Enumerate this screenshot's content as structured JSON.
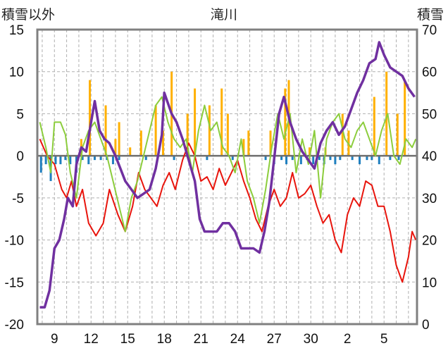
{
  "chart_data": {
    "type": "line",
    "title": "滝川",
    "ylabel_left": "積雪以外",
    "ylabel_right": "積雪",
    "x_tick_labels": [
      "9",
      "12",
      "15",
      "18",
      "21",
      "24",
      "27",
      "30",
      "2",
      "5"
    ],
    "ylim_left": [
      -20,
      15
    ],
    "ylim_right": [
      0,
      70
    ],
    "y_ticks_left": [
      "15",
      "10",
      "5",
      "0",
      "-5",
      "-10",
      "-15",
      "-20"
    ],
    "y_ticks_right": [
      "70",
      "60",
      "50",
      "40",
      "30",
      "20",
      "10",
      "0"
    ],
    "grid": true,
    "legend": "none",
    "colors": {
      "red": "#e8140c",
      "green": "#8ccd3c",
      "purple": "#7030a0",
      "orange": "#ffb000",
      "blue": "#1f7fbf",
      "frame": "#808080"
    },
    "series": [
      {
        "axis": "left",
        "color": "red",
        "points": [
          [
            7.8,
            2
          ],
          [
            8.4,
            0
          ],
          [
            9,
            -1
          ],
          [
            9.6,
            -4
          ],
          [
            10,
            -5
          ],
          [
            10.4,
            -3
          ],
          [
            10.8,
            -6
          ],
          [
            11.3,
            -4
          ],
          [
            11.8,
            -8
          ],
          [
            12.4,
            -9.5
          ],
          [
            13,
            -8
          ],
          [
            13.5,
            -4
          ],
          [
            14.2,
            -7
          ],
          [
            14.8,
            -9
          ],
          [
            15.4,
            -6
          ],
          [
            15.9,
            -2
          ],
          [
            16.4,
            -4
          ],
          [
            16.9,
            -5
          ],
          [
            17.4,
            -6
          ],
          [
            17.9,
            -3.5
          ],
          [
            18.4,
            -2
          ],
          [
            18.9,
            -4
          ],
          [
            19.5,
            -0.5
          ],
          [
            20,
            1.5
          ],
          [
            20.5,
            0
          ],
          [
            21,
            -3
          ],
          [
            21.5,
            -2.5
          ],
          [
            22,
            -4
          ],
          [
            22.5,
            -1.5
          ],
          [
            23,
            -3.5
          ],
          [
            23.5,
            -2
          ],
          [
            24,
            -0.5
          ],
          [
            24.5,
            -3
          ],
          [
            25,
            -5
          ],
          [
            25.5,
            -7.5
          ],
          [
            26,
            -9
          ],
          [
            26.5,
            -6
          ],
          [
            27,
            -4
          ],
          [
            27.5,
            -6
          ],
          [
            28,
            -5
          ],
          [
            28.5,
            -2
          ],
          [
            29,
            -5
          ],
          [
            29.5,
            -4.5
          ],
          [
            30,
            -3.5
          ],
          [
            30.5,
            -6
          ],
          [
            31,
            -8
          ],
          [
            31.5,
            -7
          ],
          [
            32,
            -10
          ],
          [
            32.5,
            -11.5
          ],
          [
            33,
            -7
          ],
          [
            33.5,
            -5
          ],
          [
            34,
            -6
          ],
          [
            34.5,
            -3
          ],
          [
            35,
            -3.5
          ],
          [
            35.5,
            -6
          ],
          [
            36,
            -6
          ],
          [
            36.5,
            -9
          ],
          [
            37,
            -13
          ],
          [
            37.5,
            -15
          ],
          [
            38,
            -12
          ],
          [
            38.3,
            -9
          ],
          [
            38.6,
            -10
          ]
        ]
      },
      {
        "axis": "left",
        "color": "green",
        "points": [
          [
            7.8,
            4
          ],
          [
            8.3,
            1
          ],
          [
            8.7,
            -2
          ],
          [
            9,
            4
          ],
          [
            9.5,
            4
          ],
          [
            9.9,
            2.5
          ],
          [
            10.3,
            -2
          ],
          [
            10.8,
            -5
          ],
          [
            11.3,
            1
          ],
          [
            11.8,
            3
          ],
          [
            12.3,
            4
          ],
          [
            12.8,
            2
          ],
          [
            13.3,
            0
          ],
          [
            13.8,
            -3
          ],
          [
            14.3,
            -6
          ],
          [
            14.8,
            -9
          ],
          [
            15.3,
            -5
          ],
          [
            15.8,
            -3
          ],
          [
            16.3,
            0
          ],
          [
            16.8,
            3
          ],
          [
            17.3,
            6
          ],
          [
            17.8,
            7
          ],
          [
            18.3,
            4
          ],
          [
            18.8,
            2
          ],
          [
            19.3,
            1
          ],
          [
            19.8,
            2
          ],
          [
            20.3,
            -2
          ],
          [
            20.8,
            3
          ],
          [
            21.3,
            6
          ],
          [
            21.8,
            3
          ],
          [
            22.3,
            4
          ],
          [
            22.8,
            1
          ],
          [
            23.3,
            0
          ],
          [
            23.8,
            -2
          ],
          [
            24.3,
            2
          ],
          [
            24.8,
            -3
          ],
          [
            25.3,
            -5
          ],
          [
            25.8,
            -8
          ],
          [
            26.3,
            -4
          ],
          [
            26.8,
            1
          ],
          [
            27.3,
            5
          ],
          [
            27.8,
            2
          ],
          [
            28.3,
            5
          ],
          [
            28.8,
            -2
          ],
          [
            29.3,
            2
          ],
          [
            29.8,
            -1
          ],
          [
            30.3,
            3
          ],
          [
            30.8,
            -5
          ],
          [
            31.3,
            2
          ],
          [
            31.8,
            4
          ],
          [
            32.3,
            5
          ],
          [
            32.8,
            2
          ],
          [
            33.3,
            1
          ],
          [
            33.8,
            3
          ],
          [
            34.3,
            4
          ],
          [
            34.8,
            2
          ],
          [
            35.3,
            0
          ],
          [
            35.8,
            3
          ],
          [
            36.3,
            5
          ],
          [
            36.8,
            0
          ],
          [
            37.3,
            -1
          ],
          [
            37.8,
            2
          ],
          [
            38.3,
            1
          ],
          [
            38.6,
            2
          ]
        ]
      },
      {
        "axis": "right",
        "color": "purple",
        "points": [
          [
            7.8,
            4
          ],
          [
            8.2,
            4
          ],
          [
            8.6,
            8
          ],
          [
            9,
            18
          ],
          [
            9.4,
            20
          ],
          [
            9.8,
            25
          ],
          [
            10.1,
            30
          ],
          [
            10.5,
            28
          ],
          [
            10.8,
            38
          ],
          [
            11.2,
            42
          ],
          [
            11.6,
            41
          ],
          [
            12,
            48
          ],
          [
            12.3,
            53
          ],
          [
            12.7,
            46
          ],
          [
            13.1,
            44
          ],
          [
            13.5,
            43
          ],
          [
            14,
            40
          ],
          [
            14.4,
            37
          ],
          [
            14.8,
            34
          ],
          [
            15.3,
            32
          ],
          [
            15.8,
            30
          ],
          [
            16.3,
            31
          ],
          [
            16.8,
            32
          ],
          [
            17.3,
            37
          ],
          [
            17.8,
            45
          ],
          [
            18,
            55
          ],
          [
            18.6,
            50
          ],
          [
            19,
            48
          ],
          [
            19.5,
            44
          ],
          [
            20,
            39
          ],
          [
            20.5,
            34
          ],
          [
            20.9,
            25
          ],
          [
            21.3,
            22
          ],
          [
            21.8,
            22
          ],
          [
            22.3,
            22
          ],
          [
            22.8,
            24
          ],
          [
            23.3,
            24
          ],
          [
            23.8,
            22
          ],
          [
            24.3,
            18
          ],
          [
            24.8,
            18
          ],
          [
            25.3,
            18
          ],
          [
            25.8,
            17
          ],
          [
            26.2,
            22
          ],
          [
            26.6,
            29
          ],
          [
            27.1,
            42
          ],
          [
            27.4,
            50
          ],
          [
            27.8,
            54
          ],
          [
            28.3,
            48
          ],
          [
            28.8,
            44
          ],
          [
            29.3,
            41
          ],
          [
            29.8,
            39
          ],
          [
            30.3,
            37
          ],
          [
            30.8,
            43
          ],
          [
            31.3,
            46
          ],
          [
            31.8,
            48
          ],
          [
            32.3,
            45
          ],
          [
            32.8,
            47
          ],
          [
            33.3,
            51
          ],
          [
            33.8,
            55
          ],
          [
            34.3,
            58
          ],
          [
            34.8,
            62
          ],
          [
            35.3,
            63
          ],
          [
            35.6,
            67
          ],
          [
            36,
            64
          ],
          [
            36.5,
            61
          ],
          [
            37,
            60
          ],
          [
            37.5,
            59
          ],
          [
            38,
            56
          ],
          [
            38.5,
            54
          ]
        ]
      }
    ],
    "bar_series": [
      {
        "axis": "left",
        "color": "orange",
        "values": [
          [
            11.2,
            2
          ],
          [
            11.9,
            9
          ],
          [
            13.2,
            6
          ],
          [
            14,
            2
          ],
          [
            14.3,
            4
          ],
          [
            15.2,
            1
          ],
          [
            16.1,
            3
          ],
          [
            17.3,
            6
          ],
          [
            17.9,
            3
          ],
          [
            18.6,
            10
          ],
          [
            19.9,
            5
          ],
          [
            20.5,
            8
          ],
          [
            21.7,
            6
          ],
          [
            22.7,
            8
          ],
          [
            23.2,
            5
          ],
          [
            24.5,
            2
          ],
          [
            24.9,
            3
          ],
          [
            26.7,
            3
          ],
          [
            27.9,
            8
          ],
          [
            28.2,
            9
          ],
          [
            29.9,
            1
          ],
          [
            31.2,
            1
          ],
          [
            32.6,
            5
          ],
          [
            33.1,
            3
          ],
          [
            35.2,
            7
          ],
          [
            36.2,
            10
          ],
          [
            37.1,
            5
          ],
          [
            37.7,
            9
          ]
        ]
      },
      {
        "axis": "left",
        "color": "blue",
        "values": [
          [
            7.9,
            -2
          ],
          [
            8.3,
            -1
          ],
          [
            8.7,
            -3
          ],
          [
            9.1,
            -1
          ],
          [
            9.5,
            -1
          ],
          [
            9.9,
            -0.5
          ],
          [
            10.3,
            -1
          ],
          [
            10.8,
            -2
          ],
          [
            11.3,
            -0.5
          ],
          [
            11.8,
            -1
          ],
          [
            12.3,
            -0.5
          ],
          [
            12.8,
            -0.5
          ],
          [
            13.3,
            -0.5
          ],
          [
            13.8,
            -1
          ],
          [
            14.3,
            -0.5
          ],
          [
            16.5,
            -0.5
          ],
          [
            18.8,
            -0.5
          ],
          [
            21.5,
            -0.5
          ],
          [
            23.6,
            -0.5
          ],
          [
            26.3,
            -0.5
          ],
          [
            27,
            -1
          ],
          [
            27.6,
            -0.5
          ],
          [
            28,
            -1
          ],
          [
            28.5,
            -0.5
          ],
          [
            29.2,
            -1
          ],
          [
            29.7,
            -0.5
          ],
          [
            30.2,
            -1
          ],
          [
            30.7,
            -0.5
          ],
          [
            31.1,
            -1
          ],
          [
            31.6,
            -0.5
          ],
          [
            32,
            -1
          ],
          [
            32.4,
            -0.5
          ],
          [
            33.4,
            -0.5
          ],
          [
            34,
            -1
          ],
          [
            34.6,
            -0.5
          ],
          [
            35,
            -0.5
          ],
          [
            35.6,
            -1
          ],
          [
            36.5,
            -0.5
          ],
          [
            37.2,
            -0.5
          ]
        ]
      }
    ]
  }
}
